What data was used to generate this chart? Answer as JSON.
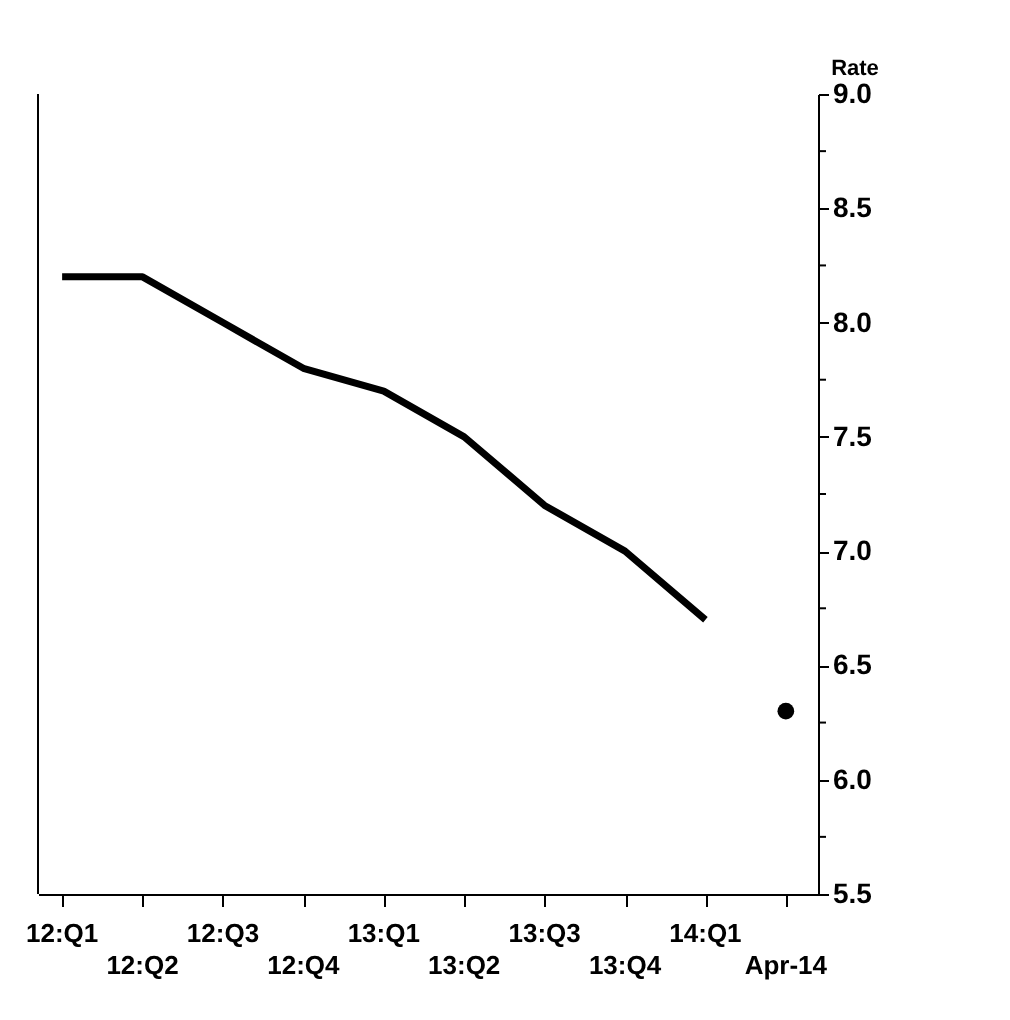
{
  "chart_data": {
    "type": "line",
    "categories": [
      "12:Q1",
      "12:Q2",
      "12:Q3",
      "12:Q4",
      "13:Q1",
      "13:Q2",
      "13:Q3",
      "13:Q4",
      "14:Q1",
      "Apr-14"
    ],
    "ylabel": "Rate",
    "series": [
      {
        "color": "#000000",
        "values": [
          8.2,
          8.2,
          8.0,
          7.8,
          7.7,
          7.5,
          7.2,
          7.0,
          6.7,
          null
        ]
      },
      {
        "type": "scatter",
        "color": "#000000",
        "marker": "circle",
        "values": [
          null,
          null,
          null,
          null,
          null,
          null,
          null,
          null,
          null,
          6.3
        ]
      }
    ],
    "ylim": [
      5.5,
      9.0
    ],
    "yticks": [
      {
        "value": 5.5,
        "label": "5.5"
      },
      {
        "value": 5.75,
        "label": null
      },
      {
        "value": 6.0,
        "label": "6.0"
      },
      {
        "value": 6.25,
        "label": null
      },
      {
        "value": 6.5,
        "label": "6.5"
      },
      {
        "value": 6.75,
        "label": null
      },
      {
        "value": 7.0,
        "label": "7.0"
      },
      {
        "value": 7.25,
        "label": null
      },
      {
        "value": 7.5,
        "label": "7.5"
      },
      {
        "value": 7.75,
        "label": null
      },
      {
        "value": 8.0,
        "label": "8.0"
      },
      {
        "value": 8.25,
        "label": null
      },
      {
        "value": 8.5,
        "label": "8.5"
      },
      {
        "value": 8.75,
        "label": null
      },
      {
        "value": 9.0,
        "label": "9.0"
      }
    ]
  }
}
